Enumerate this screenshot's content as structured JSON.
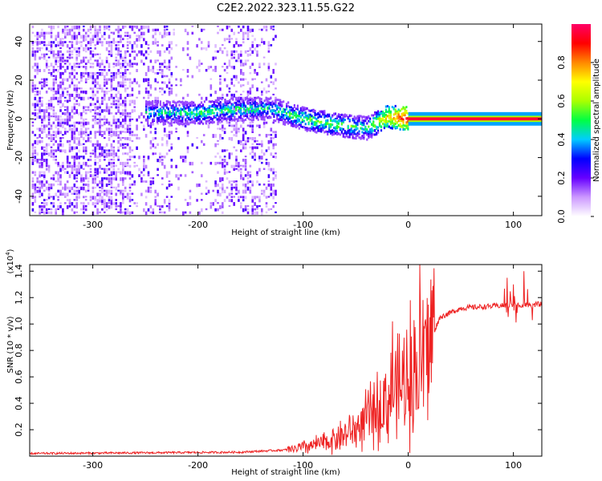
{
  "title": "C2E2.2022.323.11.55.G22",
  "chart_data": [
    {
      "type": "heatmap",
      "name": "spectrogram",
      "xlabel": "Height of straight line (km)",
      "ylabel": "Frequency (Hz)",
      "xlim": [
        -360,
        127
      ],
      "ylim": [
        -50,
        49
      ],
      "xticks": [
        -300,
        -200,
        -100,
        0,
        100
      ],
      "xtick_labels": [
        "-300",
        "-200",
        "-100",
        "0",
        "100"
      ],
      "yticks": [
        -40,
        -20,
        0,
        20,
        40
      ],
      "ytick_labels": [
        "-40",
        "-20",
        "0",
        "20",
        "40"
      ],
      "colorbar": {
        "label": "Normalized spectral amplitude",
        "range": [
          0,
          1
        ],
        "ticks": [
          0,
          0.2,
          0.4,
          0.6,
          0.8
        ],
        "tick_labels": [
          "0.0",
          "0.2",
          "0.4",
          "0.6",
          "0.8"
        ],
        "colors": [
          "#ffffff",
          "#cc99ff",
          "#6600ff",
          "#0000ff",
          "#00ccff",
          "#00ff44",
          "#aaff00",
          "#ffff00",
          "#ff8800",
          "#ff0000",
          "#ff0066"
        ]
      },
      "signal_track": [
        {
          "x": -240,
          "freq": 3,
          "amp": 0.45
        },
        {
          "x": -200,
          "freq": 3,
          "amp": 0.5
        },
        {
          "x": -160,
          "freq": 5,
          "amp": 0.5
        },
        {
          "x": -130,
          "freq": 5,
          "amp": 0.45
        },
        {
          "x": -100,
          "freq": 0,
          "amp": 0.55
        },
        {
          "x": -70,
          "freq": -3,
          "amp": 0.55
        },
        {
          "x": -40,
          "freq": -5,
          "amp": 0.5
        },
        {
          "x": -20,
          "freq": 1,
          "amp": 0.75
        },
        {
          "x": 0,
          "freq": 0,
          "amp": 0.95
        },
        {
          "x": 127,
          "freq": 0,
          "amp": 0.95
        }
      ]
    },
    {
      "type": "line",
      "name": "snr",
      "xlabel": "Height of straight line (km)",
      "ylabel": "SNR (10 * v/v)",
      "yscale_label": "(x10",
      "yscale_exp": "4",
      "xlim": [
        -360,
        127
      ],
      "ylim": [
        0,
        1.45
      ],
      "xticks": [
        -300,
        -200,
        -100,
        0,
        100
      ],
      "xtick_labels": [
        "-300",
        "-200",
        "-100",
        "0",
        "100"
      ],
      "yticks": [
        0.2,
        0.4,
        0.6,
        0.8,
        1.0,
        1.2,
        1.4
      ],
      "ytick_labels": [
        "0.2",
        "0.4",
        "0.6",
        "0.8",
        "1.0",
        "1.2",
        "1.4"
      ],
      "color": "#ee2222",
      "baseline_profile": [
        {
          "x": -360,
          "y": 0.02
        },
        {
          "x": -160,
          "y": 0.03
        },
        {
          "x": -110,
          "y": 0.05
        },
        {
          "x": -80,
          "y": 0.1
        },
        {
          "x": -50,
          "y": 0.2
        },
        {
          "x": -30,
          "y": 0.35
        },
        {
          "x": -10,
          "y": 0.5
        },
        {
          "x": 10,
          "y": 0.65
        },
        {
          "x": 20,
          "y": 0.85
        },
        {
          "x": 30,
          "y": 1.05
        },
        {
          "x": 50,
          "y": 1.12
        },
        {
          "x": 90,
          "y": 1.14
        },
        {
          "x": 127,
          "y": 1.15
        }
      ],
      "spikes": [
        {
          "x": 11,
          "y": 1.45
        },
        {
          "x": 2,
          "y": 1.18
        },
        {
          "x": -15,
          "y": 1.02
        },
        {
          "x": 94,
          "y": 1.35
        },
        {
          "x": 110,
          "y": 1.4
        },
        {
          "x": 100,
          "y": 1.3
        }
      ]
    }
  ]
}
